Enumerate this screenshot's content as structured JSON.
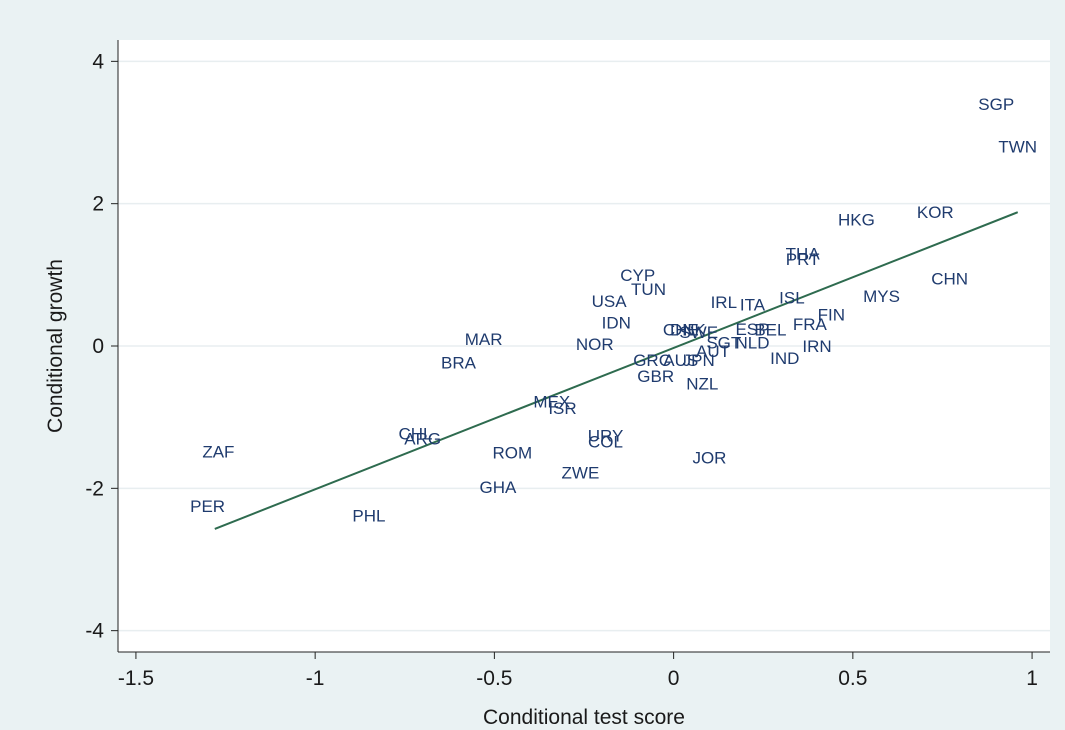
{
  "chart_data": {
    "type": "scatter",
    "title": "",
    "xlabel": "Conditional test score",
    "ylabel": "Conditional growth",
    "xlim": [
      -1.55,
      1.05
    ],
    "ylim": [
      -4.3,
      4.3
    ],
    "xticks": [
      {
        "value": -1.5,
        "label": "-1.5"
      },
      {
        "value": -1,
        "label": "-1"
      },
      {
        "value": -0.5,
        "label": "-0.5"
      },
      {
        "value": 0,
        "label": "0"
      },
      {
        "value": 0.5,
        "label": "0.5"
      },
      {
        "value": 1,
        "label": "1"
      }
    ],
    "yticks": [
      {
        "value": -4,
        "label": "-4"
      },
      {
        "value": -2,
        "label": "-2"
      },
      {
        "value": 0,
        "label": "0"
      },
      {
        "value": 2,
        "label": "2"
      },
      {
        "value": 4,
        "label": "4"
      }
    ],
    "grid": true,
    "marker_color": "#1f3b6e",
    "line_color": "#2e6b4f",
    "points": [
      {
        "label": "SGP",
        "x": 0.9,
        "y": 3.4
      },
      {
        "label": "TWN",
        "x": 0.96,
        "y": 2.8
      },
      {
        "label": "KOR",
        "x": 0.73,
        "y": 1.88
      },
      {
        "label": "HKG",
        "x": 0.51,
        "y": 1.78
      },
      {
        "label": "CHN",
        "x": 0.77,
        "y": 0.95
      },
      {
        "label": "MYS",
        "x": 0.58,
        "y": 0.7
      },
      {
        "label": "THA",
        "x": 0.36,
        "y": 1.3
      },
      {
        "label": "PRT",
        "x": 0.36,
        "y": 1.22
      },
      {
        "label": "CYP",
        "x": -0.1,
        "y": 1.0
      },
      {
        "label": "TUN",
        "x": -0.07,
        "y": 0.8
      },
      {
        "label": "USA",
        "x": -0.18,
        "y": 0.63
      },
      {
        "label": "IRL",
        "x": 0.14,
        "y": 0.62
      },
      {
        "label": "ITA",
        "x": 0.22,
        "y": 0.58
      },
      {
        "label": "ISL",
        "x": 0.33,
        "y": 0.68
      },
      {
        "label": "FIN",
        "x": 0.44,
        "y": 0.44
      },
      {
        "label": "FRA",
        "x": 0.38,
        "y": 0.31
      },
      {
        "label": "IDN",
        "x": -0.16,
        "y": 0.33
      },
      {
        "label": "CHE",
        "x": 0.02,
        "y": 0.23
      },
      {
        "label": "DNK",
        "x": 0.04,
        "y": 0.23
      },
      {
        "label": "SWE",
        "x": 0.07,
        "y": 0.2
      },
      {
        "label": "ESP",
        "x": 0.22,
        "y": 0.24
      },
      {
        "label": "BEL",
        "x": 0.27,
        "y": 0.23
      },
      {
        "label": "NLD",
        "x": 0.22,
        "y": 0.05
      },
      {
        "label": "IRN",
        "x": 0.4,
        "y": 0.0
      },
      {
        "label": "IND",
        "x": 0.31,
        "y": -0.17
      },
      {
        "label": "SGT",
        "x": 0.14,
        "y": 0.05
      },
      {
        "label": "AUT",
        "x": 0.11,
        "y": -0.07
      },
      {
        "label": "GRC",
        "x": -0.06,
        "y": -0.2
      },
      {
        "label": "AUS",
        "x": 0.02,
        "y": -0.2
      },
      {
        "label": "JPN",
        "x": 0.07,
        "y": -0.2
      },
      {
        "label": "GBR",
        "x": -0.05,
        "y": -0.42
      },
      {
        "label": "NZL",
        "x": 0.08,
        "y": -0.53
      },
      {
        "label": "NOR",
        "x": -0.22,
        "y": 0.03
      },
      {
        "label": "MAR",
        "x": -0.53,
        "y": 0.1
      },
      {
        "label": "BRA",
        "x": -0.6,
        "y": -0.23
      },
      {
        "label": "MEX",
        "x": -0.34,
        "y": -0.78
      },
      {
        "label": "ISR",
        "x": -0.31,
        "y": -0.87
      },
      {
        "label": "CHL",
        "x": -0.72,
        "y": -1.23
      },
      {
        "label": "ARG",
        "x": -0.7,
        "y": -1.3
      },
      {
        "label": "URY",
        "x": -0.19,
        "y": -1.26
      },
      {
        "label": "COL",
        "x": -0.19,
        "y": -1.34
      },
      {
        "label": "ZAF",
        "x": -1.27,
        "y": -1.48
      },
      {
        "label": "ROM",
        "x": -0.45,
        "y": -1.5
      },
      {
        "label": "JOR",
        "x": 0.1,
        "y": -1.57
      },
      {
        "label": "ZWE",
        "x": -0.26,
        "y": -1.78
      },
      {
        "label": "GHA",
        "x": -0.49,
        "y": -1.98
      },
      {
        "label": "PER",
        "x": -1.3,
        "y": -2.25
      },
      {
        "label": "PHL",
        "x": -0.85,
        "y": -2.38
      }
    ],
    "fit_line": {
      "x": [
        -1.28,
        0.96
      ],
      "y": [
        -2.57,
        1.88
      ]
    }
  }
}
